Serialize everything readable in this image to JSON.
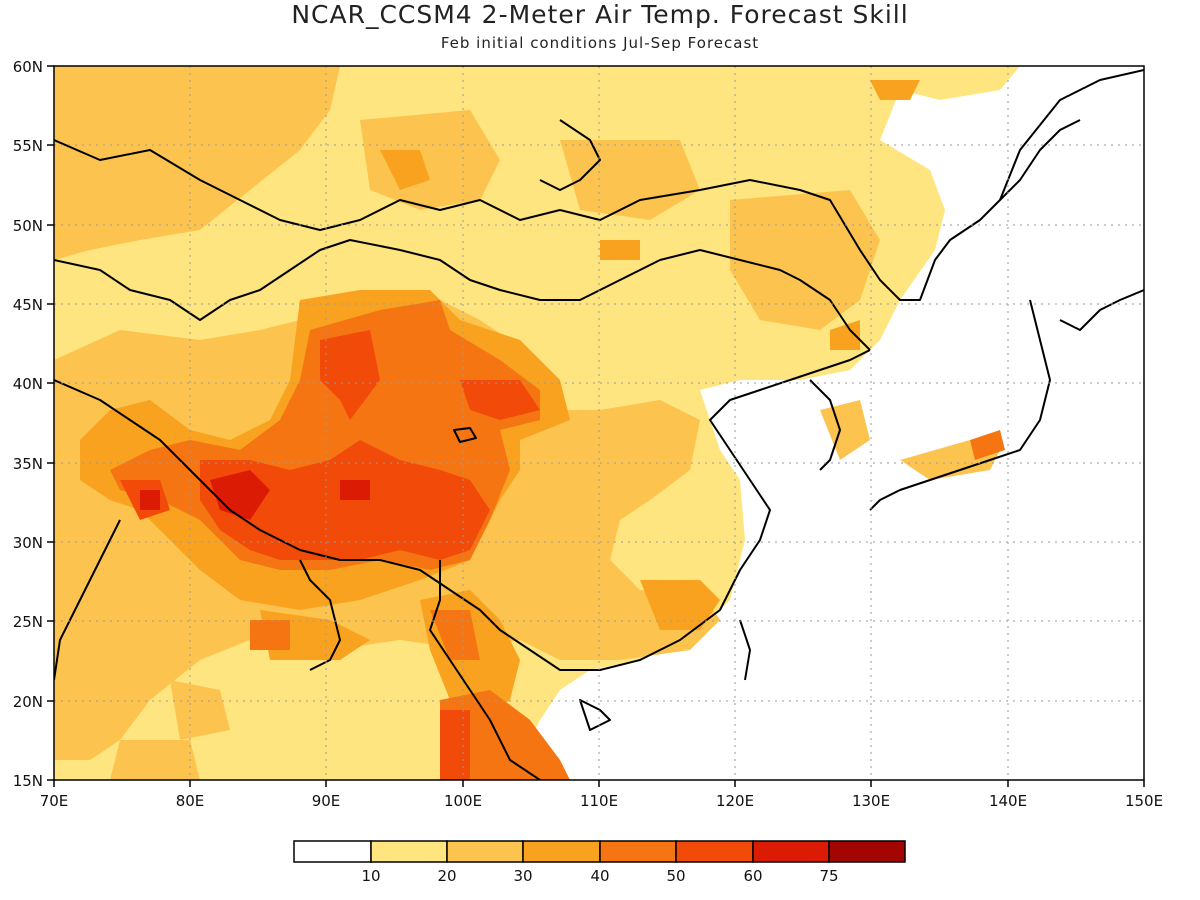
{
  "title": "NCAR_CCSM4 2-Meter Air Temp. Forecast Skill",
  "subtitle": "Feb initial conditions  Jul-Sep Forecast",
  "map": {
    "lon_range": [
      70,
      150
    ],
    "lat_range": [
      15,
      60
    ],
    "lon_ticks": [
      "70E",
      "80E",
      "90E",
      "100E",
      "110E",
      "120E",
      "130E",
      "140E",
      "150E"
    ],
    "lat_ticks": [
      "60N",
      "55N",
      "50N",
      "45N",
      "40N",
      "35N",
      "30N",
      "25N",
      "20N",
      "15N"
    ],
    "gridlines": "dotted",
    "region": "East Asia"
  },
  "colorbar": {
    "labels": [
      "10",
      "20",
      "30",
      "40",
      "50",
      "60",
      "75"
    ],
    "colors": [
      "#ffffff",
      "#fee57f",
      "#fcc44f",
      "#f9a21f",
      "#f57512",
      "#f24a09",
      "#dc1b05",
      "#a30500"
    ]
  }
}
